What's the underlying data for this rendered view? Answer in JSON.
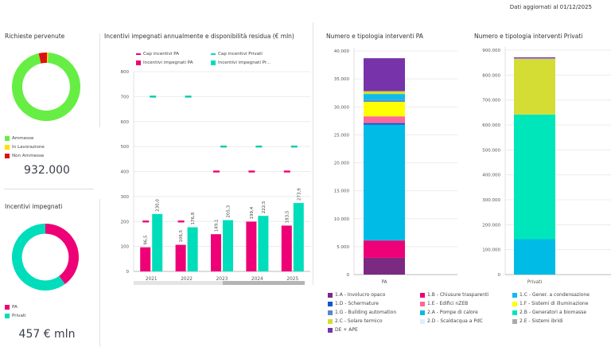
{
  "header": {
    "updated_label": "Dati aggiornati al 01/12/2025"
  },
  "richieste": {
    "title": "Richieste pervenute",
    "total": "932.000",
    "legend": [
      {
        "label": "Ammesse",
        "color": "#66ee44"
      },
      {
        "label": "In Lavorazione",
        "color": "#ffe000"
      },
      {
        "label": "Non Ammesse",
        "color": "#dd1111"
      }
    ]
  },
  "incentivi": {
    "title": "Incentivi impegnati",
    "total": "457 € mln",
    "legend": [
      {
        "label": "PA",
        "color": "#ee0077"
      },
      {
        "label": "Privati",
        "color": "#00ddbb"
      }
    ]
  },
  "annual": {
    "title": "Incentivi impegnati annualmente e disponibilità residua (€ mln)",
    "legend": [
      {
        "label": "Cap incentivi PA",
        "color": "#ee0077",
        "type": "line"
      },
      {
        "label": "Cap incentivi Privati",
        "color": "#00ddbb",
        "type": "line"
      },
      {
        "label": "Incentivi impegnati PA",
        "color": "#ee0077",
        "type": "box"
      },
      {
        "label": "Incentivi impegnati Pr...",
        "color": "#00ddbb",
        "type": "box"
      }
    ]
  },
  "pa_chart": {
    "title": "Numero e tipologia interventi PA"
  },
  "privati_chart": {
    "title": "Numero e tipologia interventi Privati"
  },
  "types_legend": [
    {
      "label": "1.A - Involucro opaco",
      "color": "#7b2a82"
    },
    {
      "label": "1.B - Chiusure trasparenti",
      "color": "#ee0077"
    },
    {
      "label": "1.C - Gener. a condensazione",
      "color": "#11bbe6"
    },
    {
      "label": "1.D - Schermature",
      "color": "#1155cc"
    },
    {
      "label": "1.E - Edifici nZEB",
      "color": "#ff6699"
    },
    {
      "label": "1.F - Sistemi di illuminazione",
      "color": "#ffff00"
    },
    {
      "label": "1.G - Building automation",
      "color": "#5588cc"
    },
    {
      "label": "2.A - Pompe di calore",
      "color": "#00bbe6"
    },
    {
      "label": "2.B - Generatori a biomasse",
      "color": "#00e6bb"
    },
    {
      "label": "2.C - Solare termico",
      "color": "#d4dd33"
    },
    {
      "label": "2.D - Scaldacqua a PdC",
      "color": "#ddeeff"
    },
    {
      "label": "2.E - Sistemi ibridi",
      "color": "#aaaaaa"
    },
    {
      "label": "DE + APE",
      "color": "#7733aa"
    }
  ],
  "chart_data": [
    {
      "id": "richieste",
      "type": "pie",
      "title": "Richieste pervenute",
      "categories": [
        "Ammesse",
        "In Lavorazione",
        "Non Ammesse"
      ],
      "values": [
        95.5,
        0.5,
        4.0
      ],
      "unit": "%"
    },
    {
      "id": "incentivi",
      "type": "pie",
      "title": "Incentivi impegnati",
      "categories": [
        "PA",
        "Privati"
      ],
      "values": [
        40,
        60
      ],
      "unit": "%"
    },
    {
      "id": "annual",
      "type": "bar",
      "title": "Incentivi impegnati annualmente e disponibilità residua (€ mln)",
      "categories": [
        "2021",
        "2022",
        "2023",
        "2024",
        "2025"
      ],
      "series": [
        {
          "name": "Incentivi impegnati PA",
          "values": [
            96.5,
            106.5,
            149.1,
            199.4,
            183.5
          ],
          "labels": [
            "96,5",
            "106,5",
            "149,1",
            "199,4",
            "183,5"
          ]
        },
        {
          "name": "Incentivi impegnati Privati",
          "values": [
            230.0,
            176.8,
            205.3,
            222.5,
            273.9
          ],
          "labels": [
            "230,0",
            "176,8",
            "205,3",
            "222,5",
            "273,9"
          ]
        },
        {
          "name": "Cap incentivi PA",
          "values": [
            200,
            200,
            400,
            400,
            400
          ]
        },
        {
          "name": "Cap incentivi Privati",
          "values": [
            700,
            700,
            500,
            500,
            500
          ]
        }
      ],
      "yticks": [
        "0",
        "100",
        "200",
        "300",
        "400",
        "500",
        "600",
        "700",
        "800"
      ],
      "ylim": [
        0,
        800
      ],
      "grid": true,
      "legend": "top"
    },
    {
      "id": "pa",
      "type": "bar",
      "stacked": true,
      "title": "Numero e tipologia interventi PA",
      "categories": [
        "PA"
      ],
      "series": [
        {
          "name": "1.A - Involucro opaco",
          "values": [
            3000
          ]
        },
        {
          "name": "1.B - Chiusure trasparenti",
          "values": [
            3100
          ]
        },
        {
          "name": "2.A - Pompe di calore",
          "values": [
            20700
          ]
        },
        {
          "name": "1.D - Schermature",
          "values": [
            300
          ]
        },
        {
          "name": "1.E - Edifici nZEB",
          "values": [
            1200
          ]
        },
        {
          "name": "1.F - Sistemi di illuminazione",
          "values": [
            2600
          ]
        },
        {
          "name": "1.G - Building automation",
          "values": [
            300
          ]
        },
        {
          "name": "1.C - Gener. a condensazione",
          "values": [
            1100
          ]
        },
        {
          "name": "2.C - Solare termico",
          "values": [
            500
          ]
        },
        {
          "name": "DE + APE",
          "values": [
            5900
          ]
        }
      ],
      "yticks": [
        "0",
        "5.000",
        "10.000",
        "15.000",
        "20.000",
        "25.000",
        "30.000",
        "35.000",
        "40.000"
      ],
      "ylim": [
        0,
        40000
      ]
    },
    {
      "id": "privati",
      "type": "bar",
      "stacked": true,
      "title": "Numero e tipologia interventi Privati",
      "categories": [
        "Privati"
      ],
      "series": [
        {
          "name": "2.A - Pompe di calore",
          "values": [
            142000
          ]
        },
        {
          "name": "2.B - Generatori a biomasse",
          "values": [
            500000
          ]
        },
        {
          "name": "2.C - Solare termico",
          "values": [
            222000
          ]
        },
        {
          "name": "2.E - Sistemi ibridi",
          "values": [
            3000
          ]
        },
        {
          "name": "DE + APE",
          "values": [
            4000
          ]
        }
      ],
      "yticks": [
        "0",
        "100.000",
        "200.000",
        "300.000",
        "400.000",
        "500.000",
        "600.000",
        "700.000",
        "800.000",
        "900.000"
      ],
      "ylim": [
        0,
        900000
      ]
    }
  ]
}
